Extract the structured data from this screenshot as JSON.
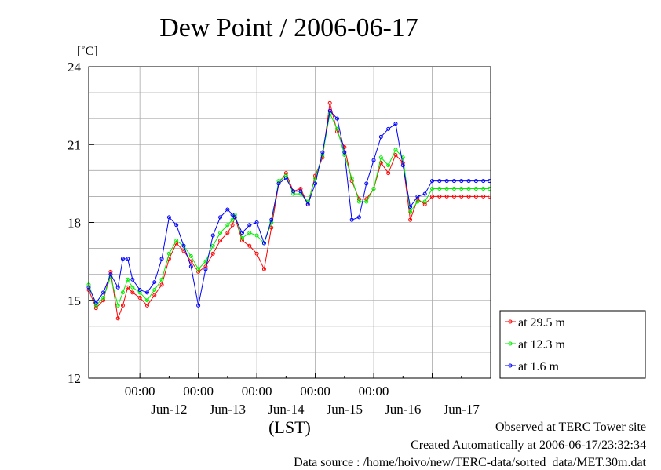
{
  "title": "Dew Point / 2006-06-17",
  "yunit": "[˚C]",
  "xlabel": "(LST)",
  "footer": {
    "line1": "Observed at TERC Tower site",
    "line2": "Created Automatically at 2006-06-17/23:32:34",
    "line3": "Data source : /home/hoivo/new/TERC-data/sorted  data/MET.30m.dat"
  },
  "colors": {
    "s1": "#ff0000",
    "s2": "#00ee00",
    "s3": "#0000ff"
  },
  "chart_data": {
    "type": "line",
    "title": "Dew Point / 2006-06-17",
    "xlabel": "(LST)",
    "ylabel": "[˚C]",
    "xlim": [
      "2006-06-11T03:00",
      "2006-06-18T00:00"
    ],
    "ylim": [
      12,
      24
    ],
    "yticks": [
      12,
      15,
      18,
      21,
      24
    ],
    "xticks_time": [
      "00:00",
      "00:00",
      "00:00",
      "00:00",
      "00:00"
    ],
    "xticks_date": [
      "Jun-12",
      "Jun-13",
      "Jun-14",
      "Jun-15",
      "Jun-16",
      "Jun-17"
    ],
    "grid": true,
    "legend_position": "right",
    "x": [
      "2006-06-11T03:00",
      "2006-06-11T06:00",
      "2006-06-11T09:00",
      "2006-06-11T12:00",
      "2006-06-11T15:00",
      "2006-06-11T17:00",
      "2006-06-11T19:00",
      "2006-06-11T21:00",
      "2006-06-12T00:00",
      "2006-06-12T03:00",
      "2006-06-12T06:00",
      "2006-06-12T09:00",
      "2006-06-12T12:00",
      "2006-06-12T15:00",
      "2006-06-12T18:00",
      "2006-06-12T21:00",
      "2006-06-13T00:00",
      "2006-06-13T03:00",
      "2006-06-13T06:00",
      "2006-06-13T09:00",
      "2006-06-13T12:00",
      "2006-06-13T14:00",
      "2006-06-13T15:00",
      "2006-06-13T18:00",
      "2006-06-13T21:00",
      "2006-06-14T00:00",
      "2006-06-14T03:00",
      "2006-06-14T06:00",
      "2006-06-14T09:00",
      "2006-06-14T12:00",
      "2006-06-14T15:00",
      "2006-06-14T18:00",
      "2006-06-14T21:00",
      "2006-06-15T00:00",
      "2006-06-15T03:00",
      "2006-06-15T06:00",
      "2006-06-15T09:00",
      "2006-06-15T12:00",
      "2006-06-15T15:00",
      "2006-06-15T18:00",
      "2006-06-15T21:00",
      "2006-06-16T00:00",
      "2006-06-16T03:00",
      "2006-06-16T06:00",
      "2006-06-16T09:00",
      "2006-06-16T12:00",
      "2006-06-16T15:00",
      "2006-06-16T18:00",
      "2006-06-16T21:00",
      "2006-06-17T00:00",
      "2006-06-17T03:00",
      "2006-06-17T06:00",
      "2006-06-17T09:00",
      "2006-06-17T12:00",
      "2006-06-17T15:00",
      "2006-06-17T18:00",
      "2006-06-17T21:00",
      "2006-06-17T23:30"
    ],
    "series": [
      {
        "name": "at 29.5 m",
        "values": [
          15.4,
          14.7,
          15.0,
          16.1,
          14.3,
          14.8,
          15.5,
          15.3,
          15.1,
          14.8,
          15.2,
          15.6,
          16.6,
          17.2,
          16.9,
          16.5,
          16.1,
          16.3,
          16.8,
          17.3,
          17.6,
          17.9,
          18.2,
          17.3,
          17.1,
          16.8,
          16.2,
          17.8,
          19.5,
          19.9,
          19.2,
          19.3,
          18.7,
          19.8,
          20.5,
          22.6,
          21.5,
          20.9,
          19.6,
          18.9,
          18.9,
          19.3,
          20.3,
          19.9,
          20.6,
          20.3,
          18.1,
          18.9,
          18.7,
          19.0,
          19.0,
          19.0,
          19.0,
          19.0,
          19.0,
          19.0,
          19.0,
          19.0
        ]
      },
      {
        "name": "at 12.3 m",
        "values": [
          15.6,
          14.8,
          15.1,
          15.9,
          14.8,
          15.3,
          15.8,
          15.5,
          15.3,
          15.0,
          15.4,
          15.8,
          16.8,
          17.3,
          17.1,
          16.7,
          16.2,
          16.5,
          17.1,
          17.6,
          17.9,
          18.1,
          18.3,
          17.4,
          17.6,
          17.5,
          17.2,
          18.0,
          19.6,
          19.8,
          19.1,
          19.1,
          18.8,
          19.7,
          20.6,
          22.2,
          21.6,
          20.6,
          19.7,
          18.8,
          18.8,
          19.3,
          20.5,
          20.2,
          20.8,
          20.5,
          18.4,
          18.8,
          18.8,
          19.3,
          19.3,
          19.3,
          19.3,
          19.3,
          19.3,
          19.3,
          19.3,
          19.3
        ]
      },
      {
        "name": "at 1.6 m",
        "values": [
          15.5,
          14.9,
          15.3,
          16.0,
          15.5,
          16.6,
          16.6,
          15.8,
          15.4,
          15.3,
          15.7,
          16.6,
          18.2,
          17.9,
          17.1,
          16.3,
          14.8,
          16.2,
          17.5,
          18.2,
          18.5,
          18.3,
          18.2,
          17.6,
          17.9,
          18.0,
          17.2,
          18.1,
          19.5,
          19.7,
          19.2,
          19.2,
          18.7,
          19.5,
          20.7,
          22.3,
          22.0,
          20.7,
          18.1,
          18.2,
          19.5,
          20.4,
          21.3,
          21.6,
          21.8,
          20.2,
          18.6,
          19.0,
          19.1,
          19.6,
          19.6,
          19.6,
          19.6,
          19.6,
          19.6,
          19.6,
          19.6,
          19.6
        ]
      }
    ]
  }
}
